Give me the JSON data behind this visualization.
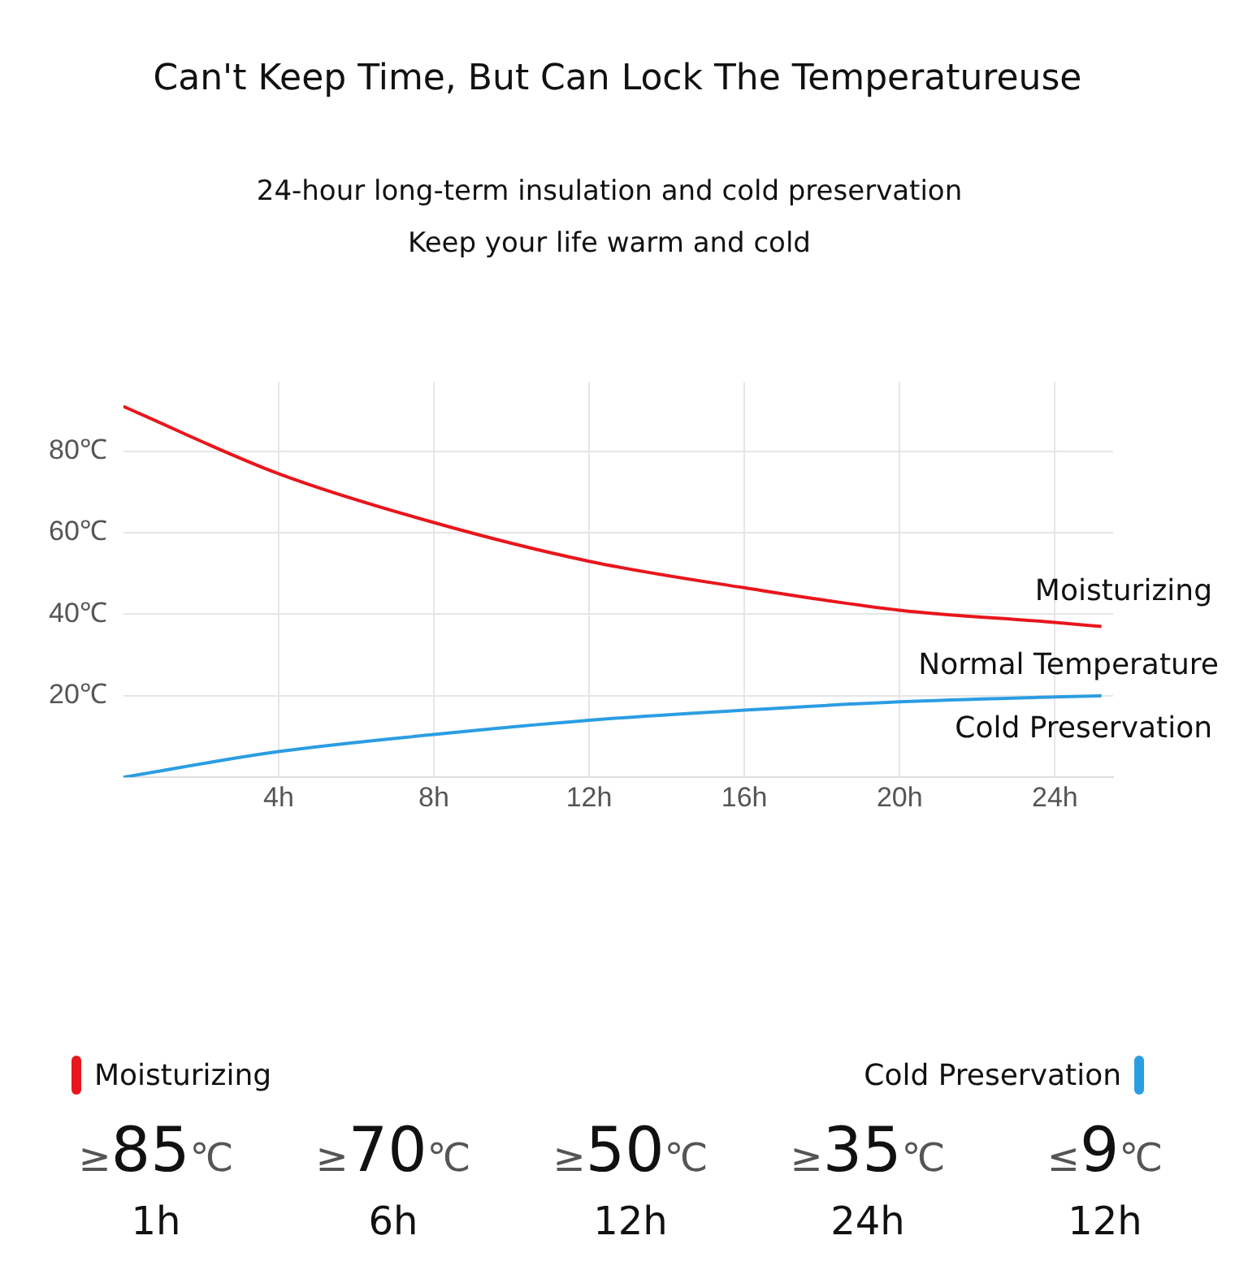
{
  "chart_data": {
    "type": "line",
    "title": "Can't Keep Time, But Can Lock The Temperatureuse",
    "subtitle": "24-hour long-term insulation and cold preservation\nKeep your life warm and cold",
    "xlim": [
      0,
      25.5
    ],
    "xticks": [
      {
        "value": 4,
        "label": "4h"
      },
      {
        "value": 8,
        "label": "8h"
      },
      {
        "value": 12,
        "label": "12h"
      },
      {
        "value": 16,
        "label": "16h"
      },
      {
        "value": 20,
        "label": "20h"
      },
      {
        "value": 24,
        "label": "24h"
      }
    ],
    "ylim": [
      0,
      97
    ],
    "yticks": [
      {
        "value": 0,
        "label": null
      },
      {
        "value": 20,
        "label": "20℃"
      },
      {
        "value": 40,
        "label": "40℃"
      },
      {
        "value": 60,
        "label": "60℃"
      },
      {
        "value": 80,
        "label": "80℃"
      }
    ],
    "grid": true,
    "legend": "bottom",
    "marker": "none",
    "line_style": "solid",
    "x": [
      0,
      4,
      8,
      12,
      16,
      20,
      24,
      25.2
    ],
    "series": [
      {
        "name": "Moisturizing",
        "color": "#e8161c",
        "values": [
          91,
          74.5,
          62.5,
          53,
          46.5,
          41,
          38,
          37
        ]
      },
      {
        "name": "Cold Preservation",
        "color": "#2b9de2",
        "values": [
          0,
          6.3,
          10.5,
          14,
          16.5,
          18.5,
          19.7,
          20
        ]
      }
    ],
    "annotations": [
      "Normal Temperature",
      "≥85℃",
      "≥70℃",
      "≥50℃",
      "≥35℃",
      "≤9℃",
      "1h",
      "6h",
      "12h",
      "24h",
      "12h"
    ]
  }
}
